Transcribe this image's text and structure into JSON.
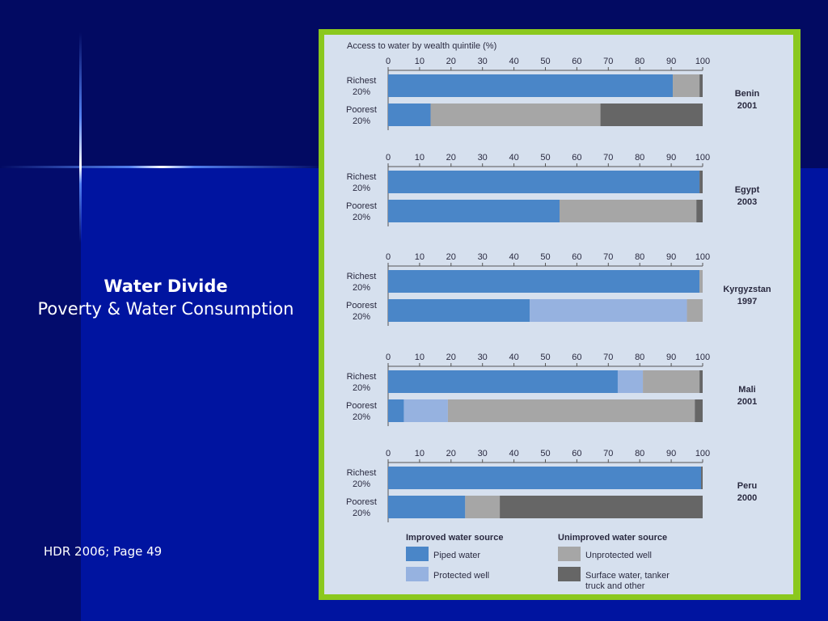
{
  "slide": {
    "title": "Water Divide",
    "subtitle": "Poverty & Water Consumption",
    "source": "HDR 2006; Page 49"
  },
  "colors": {
    "piped_water": "#4a86c8",
    "protected_well": "#96b2e0",
    "unprotected_well": "#a6a6a6",
    "surface_water": "#666666",
    "frame": "#8bc81e",
    "panel": "#d6e0ee"
  },
  "chart_data": {
    "type": "bar",
    "orientation": "horizontal",
    "stacked": true,
    "title": "Access to water by wealth quintile (%)",
    "xlim": [
      0,
      100
    ],
    "ticks": [
      "0",
      "10",
      "20",
      "30",
      "40",
      "50",
      "60",
      "70",
      "80",
      "90",
      "100"
    ],
    "legend": {
      "group_improved": "Improved water source",
      "group_unimproved": "Unimproved water source",
      "items": [
        "Piped water",
        "Protected well",
        "Unprotected well",
        "Surface water, tanker\ntruck and other"
      ]
    },
    "series_names": [
      "Piped water",
      "Protected well",
      "Unprotected well",
      "Surface water, tanker truck and other"
    ],
    "groups": [
      {
        "country": "Benin",
        "year": "2001",
        "bars": [
          {
            "label": "Richest\n20%",
            "values": [
              90.5,
              0,
              8.5,
              1
            ]
          },
          {
            "label": "Poorest\n20%",
            "values": [
              13.5,
              0,
              54,
              32.5
            ]
          }
        ]
      },
      {
        "country": "Egypt",
        "year": "2003",
        "bars": [
          {
            "label": "Richest\n20%",
            "values": [
              99,
              0,
              0,
              1
            ]
          },
          {
            "label": "Poorest\n20%",
            "values": [
              54.5,
              0,
              43.5,
              2
            ]
          }
        ]
      },
      {
        "country": "Kyrgyzstan",
        "year": "1997",
        "bars": [
          {
            "label": "Richest\n20%",
            "values": [
              99,
              0,
              1,
              0
            ]
          },
          {
            "label": "Poorest\n20%",
            "values": [
              45,
              50,
              5,
              0
            ]
          }
        ]
      },
      {
        "country": "Mali",
        "year": "2001",
        "bars": [
          {
            "label": "Richest\n20%",
            "values": [
              73,
              8,
              18,
              1
            ]
          },
          {
            "label": "Poorest\n20%",
            "values": [
              5,
              14,
              78.5,
              2.5
            ]
          }
        ]
      },
      {
        "country": "Peru",
        "year": "2000",
        "bars": [
          {
            "label": "Richest\n20%",
            "values": [
              99.5,
              0,
              0,
              0.5
            ]
          },
          {
            "label": "Poorest\n20%",
            "values": [
              24.5,
              0,
              11,
              64.5
            ]
          }
        ]
      }
    ]
  }
}
